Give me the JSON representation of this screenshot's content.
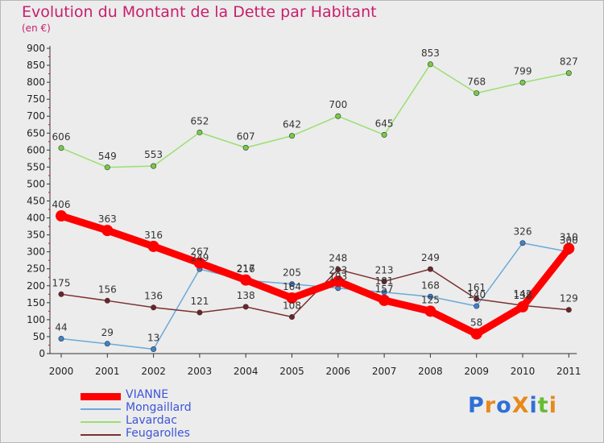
{
  "title": "Evolution du Montant de la Dette par Habitant",
  "subtitle": "(en €)",
  "logo": {
    "text": "ProXiti",
    "colors": [
      "#2f6fd6",
      "#e8891a",
      "#2f6fd6",
      "#e8891a",
      "#2f6fd6",
      "#66bb33",
      "#e8891a"
    ]
  },
  "chart_data": {
    "type": "line",
    "title": "Evolution du Montant de la Dette par Habitant",
    "subtitle": "(en €)",
    "xlabel": "",
    "ylabel": "",
    "categories": [
      "2000",
      "2001",
      "2002",
      "2003",
      "2004",
      "2005",
      "2006",
      "2007",
      "2008",
      "2009",
      "2010",
      "2011"
    ],
    "ylim": [
      0,
      900
    ],
    "yticks": [
      0,
      50,
      100,
      150,
      200,
      250,
      300,
      350,
      400,
      450,
      500,
      550,
      600,
      650,
      700,
      750,
      800,
      850,
      900
    ],
    "grid": false,
    "legend_position": "bottom-left",
    "series": [
      {
        "name": "VIANNE",
        "color": "#ff0000",
        "marker_color": "#ff0000",
        "thick": true,
        "values": [
          406,
          363,
          316,
          267,
          217,
          164,
          213,
          157,
          125,
          58,
          138,
          310
        ]
      },
      {
        "name": "Mongaillard",
        "color": "#6aaad8",
        "marker_color": "#3d82cc",
        "thick": false,
        "values": [
          44,
          29,
          13,
          249,
          216,
          205,
          193,
          181,
          168,
          140,
          326,
          300
        ]
      },
      {
        "name": "Lavardac",
        "color": "#99e070",
        "marker_color": "#77cc44",
        "thick": false,
        "values": [
          606,
          549,
          553,
          652,
          607,
          642,
          700,
          645,
          853,
          768,
          799,
          827
        ]
      },
      {
        "name": "Feugarolles",
        "color": "#7a3030",
        "marker_color": "#6e2424",
        "thick": false,
        "values": [
          175,
          156,
          136,
          121,
          138,
          108,
          248,
          213,
          249,
          161,
          142,
          129
        ]
      }
    ]
  }
}
